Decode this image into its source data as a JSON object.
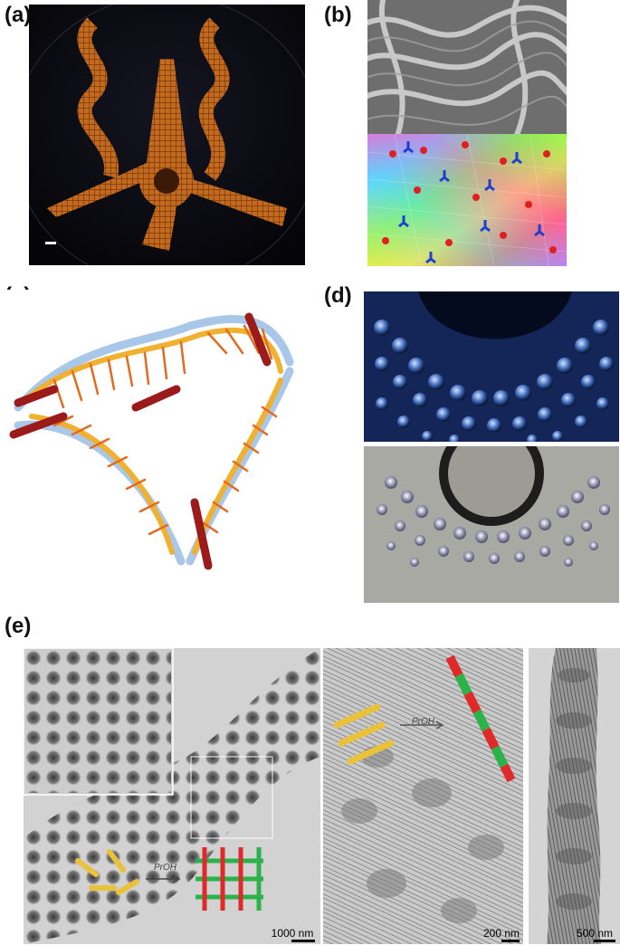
{
  "labels": {
    "a": "(a)",
    "b": "(b)",
    "c": "(c)",
    "d": "(d)",
    "e": "(e)"
  },
  "scale_bars": {
    "e1": "1000 nm",
    "e2": "200 nm",
    "e3": "500 nm"
  },
  "annotations": {
    "proh1": "PrOH",
    "proh2": "PrOH"
  },
  "colors": {
    "dna_orange": "#e8892c",
    "background_black": "#0a0a10",
    "tem_gray": "#c8c8c8",
    "rod_green": "#2bb24a",
    "rod_red": "#e02a2a",
    "rod_yellow": "#e9c23a"
  }
}
